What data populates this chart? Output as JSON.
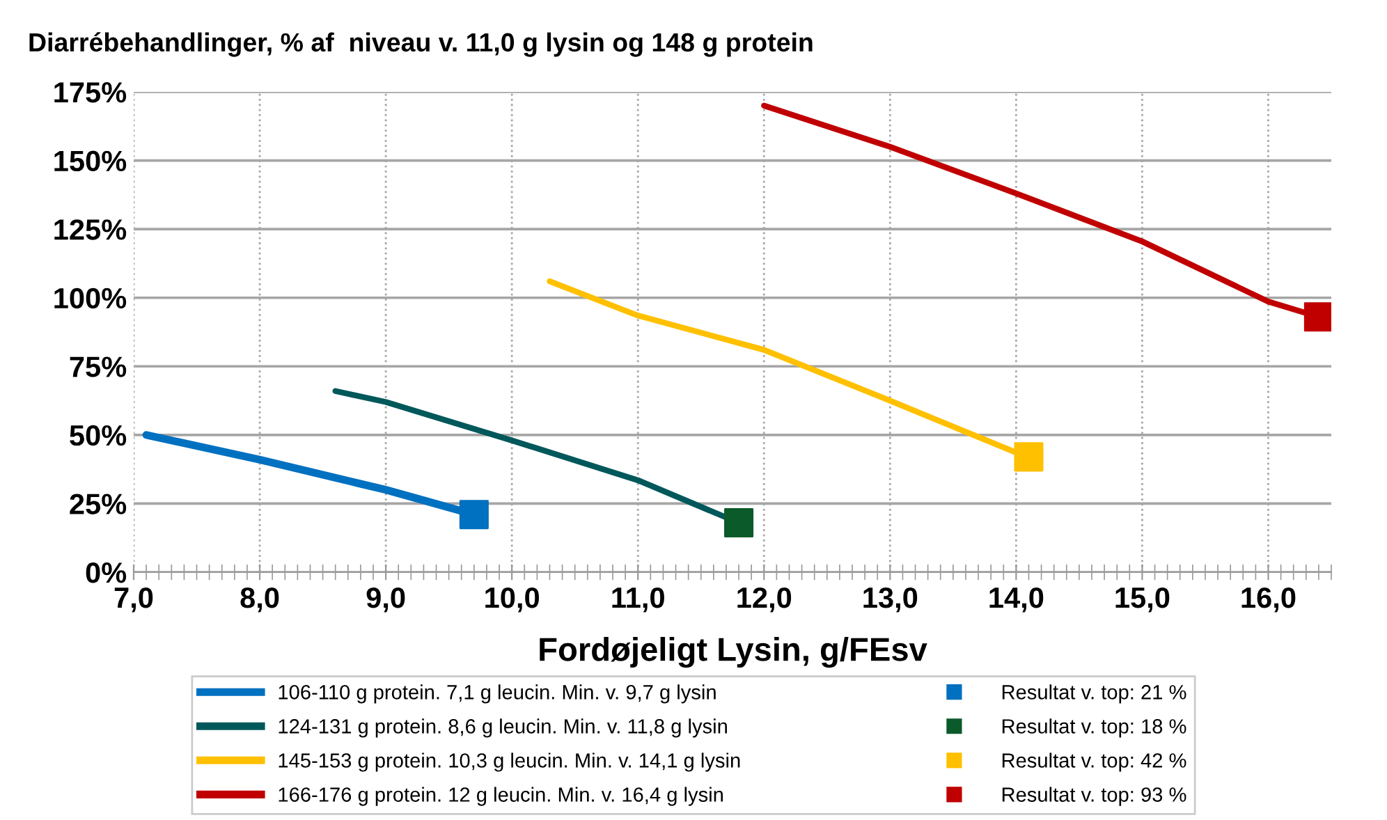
{
  "chart_data": {
    "type": "line",
    "title": "Diarrébehandlinger, % af  niveau v. 11,0 g lysin og 148 g protein",
    "xlabel": "Fordøjeligt Lysin, g/FEsv",
    "xlim": [
      7.0,
      16.5
    ],
    "xticks": [
      {
        "value": 7,
        "label": "7,0"
      },
      {
        "value": 8,
        "label": "8,0"
      },
      {
        "value": 9,
        "label": "9,0"
      },
      {
        "value": 10,
        "label": "10,0"
      },
      {
        "value": 11,
        "label": "11,0"
      },
      {
        "value": 12,
        "label": "12,0"
      },
      {
        "value": 13,
        "label": "13,0"
      },
      {
        "value": 14,
        "label": "14,0"
      },
      {
        "value": 15,
        "label": "15,0"
      },
      {
        "value": 16,
        "label": "16,0"
      }
    ],
    "ylim": [
      0,
      175
    ],
    "yticks": [
      {
        "value": 0,
        "label": "0%"
      },
      {
        "value": 25,
        "label": "25%"
      },
      {
        "value": 50,
        "label": "50%"
      },
      {
        "value": 75,
        "label": "75%"
      },
      {
        "value": 100,
        "label": "100%"
      },
      {
        "value": 125,
        "label": "125%"
      },
      {
        "value": 150,
        "label": "150%"
      },
      {
        "value": 175,
        "label": "175%"
      }
    ],
    "grid": true,
    "legend": "bottom",
    "line_style": "solid",
    "series": [
      {
        "name": "106-110 g protein. 7,1 g leucin. Min. v. 9,7 g lysin",
        "color": "#0070c0",
        "x": [
          7.1,
          8.0,
          9.0,
          9.7
        ],
        "values": [
          50,
          41,
          30,
          21
        ]
      },
      {
        "name": "124-131 g protein. 8,6 g leucin. Min. v. 11,8 g lysin",
        "color": "#00585a",
        "x": [
          8.6,
          9.0,
          10.0,
          11.0,
          11.8
        ],
        "values": [
          66,
          62,
          48,
          33.5,
          18
        ]
      },
      {
        "name": "145-153 g protein. 10,3 g leucin. Min. v. 14,1 g lysin",
        "color": "#ffc000",
        "x": [
          10.3,
          11.0,
          12.0,
          13.0,
          14.0,
          14.1
        ],
        "values": [
          106,
          93.5,
          81,
          62.5,
          43.6,
          42
        ]
      },
      {
        "name": "166-176 g protein. 12 g leucin. Min. v. 16,4 g lysin",
        "color": "#c00000",
        "x": [
          12.0,
          13.0,
          14.0,
          15.0,
          16.0,
          16.4
        ],
        "values": [
          170,
          155,
          138,
          120.5,
          98.6,
          93
        ]
      },
      {
        "name": "Resultat v. top: 21 %",
        "type": "scatter",
        "marker": "square",
        "color": "#0070c0",
        "x": [
          9.7
        ],
        "values": [
          21
        ]
      },
      {
        "name": "Resultat v. top: 18 %",
        "type": "scatter",
        "marker": "square",
        "color": "#0b5a2a",
        "x": [
          11.8
        ],
        "values": [
          18
        ]
      },
      {
        "name": "Resultat v. top: 42 %",
        "type": "scatter",
        "marker": "square",
        "color": "#ffc000",
        "x": [
          14.1
        ],
        "values": [
          42
        ]
      },
      {
        "name": "Resultat v. top: 93 %",
        "type": "scatter",
        "marker": "square",
        "color": "#c00000",
        "x": [
          16.4
        ],
        "values": [
          93
        ]
      }
    ]
  }
}
